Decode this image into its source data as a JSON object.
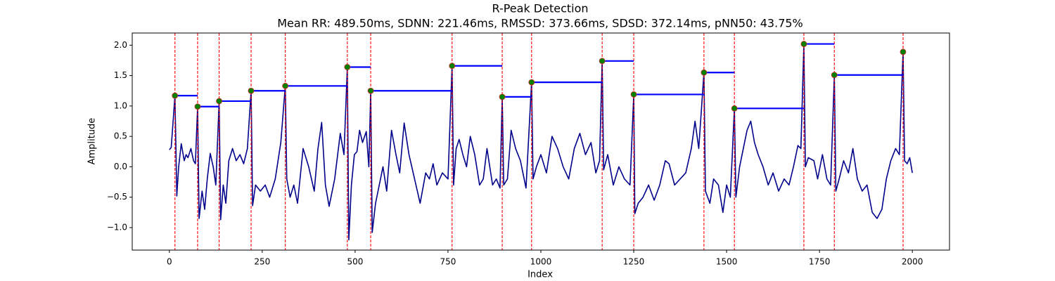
{
  "chart_data": {
    "type": "line",
    "title": "R-Peak Detection",
    "subtitle": "Mean RR: 489.50ms, SDNN: 221.46ms, RMSSD: 373.66ms, SDSD: 372.14ms, pNN50: 43.75%",
    "xlabel": "Index",
    "ylabel": "Amplitude",
    "color": "#00008b",
    "xlim": [
      -100,
      2100
    ],
    "ylim": [
      -1.37,
      2.2
    ],
    "xticks": [
      0,
      250,
      500,
      750,
      1000,
      1250,
      1500,
      1750,
      2000
    ],
    "yticks": [
      {
        "value": -1,
        "label": "−1.0"
      },
      {
        "value": -0.5,
        "label": "−0.5"
      },
      {
        "value": 0,
        "label": "0.0"
      },
      0.5,
      {
        "value": 1,
        "label": "1.0"
      },
      1.5,
      {
        "value": 2,
        "label": "2.0"
      }
    ],
    "x": [
      0,
      5,
      15,
      20,
      25,
      32,
      40,
      45,
      50,
      58,
      65,
      70,
      76,
      80,
      88,
      95,
      102,
      110,
      118,
      125,
      134,
      138,
      145,
      152,
      160,
      170,
      180,
      190,
      200,
      210,
      220,
      224,
      232,
      245,
      258,
      270,
      285,
      300,
      312,
      316,
      325,
      335,
      345,
      360,
      375,
      390,
      400,
      410,
      420,
      430,
      445,
      460,
      470,
      479,
      483,
      490,
      498,
      505,
      512,
      520,
      530,
      537,
      542,
      546,
      555,
      565,
      575,
      585,
      598,
      610,
      620,
      632,
      645,
      660,
      675,
      690,
      700,
      710,
      720,
      735,
      750,
      761,
      765,
      772,
      780,
      790,
      800,
      810,
      822,
      835,
      845,
      855,
      870,
      880,
      890,
      896,
      900,
      910,
      920,
      932,
      945,
      960,
      975,
      979,
      988,
      1000,
      1015,
      1030,
      1045,
      1060,
      1075,
      1090,
      1105,
      1120,
      1135,
      1148,
      1158,
      1165,
      1169,
      1180,
      1195,
      1210,
      1225,
      1240,
      1250,
      1253,
      1262,
      1275,
      1290,
      1305,
      1320,
      1335,
      1345,
      1360,
      1375,
      1390,
      1405,
      1415,
      1425,
      1439,
      1443,
      1455,
      1465,
      1478,
      1490,
      1500,
      1510,
      1521,
      1525,
      1535,
      1545,
      1555,
      1565,
      1575,
      1585,
      1598,
      1612,
      1625,
      1640,
      1655,
      1668,
      1680,
      1692,
      1700,
      1708,
      1712,
      1720,
      1735,
      1745,
      1758,
      1770,
      1780,
      1790,
      1794,
      1803,
      1815,
      1828,
      1840,
      1852,
      1865,
      1878,
      1892,
      1905,
      1918,
      1930,
      1942,
      1955,
      1965,
      1975,
      1979,
      1986,
      1993,
      2000
    ],
    "values": [
      0.28,
      0.32,
      1.17,
      -0.48,
      0.0,
      0.38,
      0.1,
      0.2,
      0.15,
      0.3,
      0.1,
      0.05,
      0.99,
      -0.85,
      -0.4,
      -0.7,
      -0.2,
      0.22,
      0.0,
      -0.3,
      1.08,
      -0.87,
      -0.3,
      -0.6,
      0.1,
      0.3,
      0.1,
      0.2,
      0.05,
      0.3,
      1.25,
      -0.64,
      -0.3,
      -0.4,
      -0.3,
      -0.5,
      -0.2,
      0.4,
      1.33,
      -0.2,
      -0.5,
      -0.3,
      -0.6,
      0.3,
      0.0,
      -0.4,
      0.3,
      0.73,
      -0.3,
      -0.65,
      -0.2,
      0.55,
      0.2,
      1.64,
      -1.2,
      -0.3,
      0.2,
      0.25,
      0.6,
      0.4,
      0.58,
      0.0,
      1.25,
      -1.08,
      -0.6,
      -0.3,
      0.0,
      -0.4,
      0.6,
      0.2,
      -0.1,
      0.72,
      0.2,
      -0.2,
      -0.6,
      -0.1,
      -0.2,
      0.05,
      -0.3,
      -0.1,
      -0.2,
      1.66,
      -0.3,
      0.3,
      0.45,
      0.2,
      0.0,
      0.5,
      0.2,
      -0.3,
      -0.2,
      0.3,
      -0.3,
      -0.2,
      -0.35,
      1.15,
      -0.3,
      -0.2,
      0.6,
      0.3,
      0.1,
      -0.35,
      1.39,
      -0.2,
      0.0,
      0.2,
      -0.1,
      0.5,
      0.3,
      0.0,
      -0.2,
      0.3,
      0.55,
      0.2,
      0.4,
      -0.1,
      0.1,
      1.74,
      -0.05,
      0.2,
      -0.3,
      0.0,
      -0.2,
      -0.3,
      1.19,
      -0.77,
      -0.6,
      -0.5,
      -0.3,
      -0.55,
      -0.3,
      0.1,
      0.05,
      -0.3,
      -0.2,
      -0.1,
      0.3,
      0.75,
      0.3,
      1.55,
      -0.4,
      -0.6,
      -0.2,
      -0.3,
      -0.75,
      -0.3,
      -0.5,
      0.96,
      -0.5,
      0.0,
      0.3,
      0.6,
      0.75,
      0.4,
      0.2,
      0.0,
      -0.3,
      -0.1,
      -0.4,
      -0.2,
      -0.3,
      0.0,
      0.35,
      0.3,
      2.02,
      0.0,
      0.15,
      0.1,
      -0.2,
      0.2,
      -0.2,
      -0.3,
      1.51,
      -0.4,
      -0.2,
      0.1,
      -0.1,
      0.3,
      -0.2,
      -0.4,
      -0.3,
      -0.75,
      -0.85,
      -0.7,
      -0.2,
      0.1,
      0.3,
      0.2,
      1.89,
      0.1,
      0.05,
      0.15,
      -0.1
    ],
    "peaks": {
      "x": [
        15,
        76,
        134,
        220,
        312,
        479,
        542,
        761,
        896,
        975,
        1165,
        1250,
        1439,
        1521,
        1708,
        1790,
        1975
      ],
      "values": [
        1.17,
        0.99,
        1.08,
        1.25,
        1.33,
        1.64,
        1.25,
        1.66,
        1.15,
        1.39,
        1.74,
        1.19,
        1.55,
        0.96,
        2.02,
        1.51,
        1.89
      ],
      "color": "#008000",
      "edge_color": "#d62728",
      "line_color": "#ff0000",
      "rr_color": "#0000ff"
    }
  }
}
